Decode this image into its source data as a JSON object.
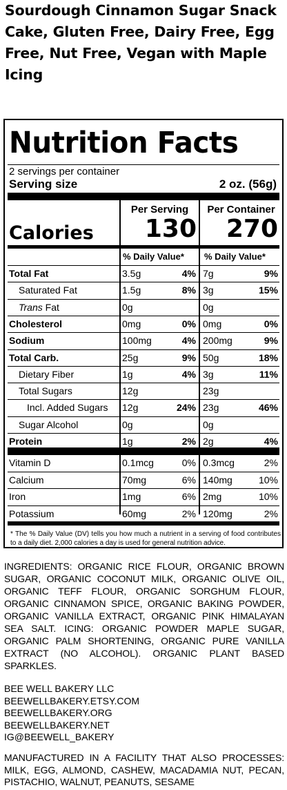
{
  "product_title": "Sourdough Cinnamon Sugar Snack Cake, Gluten Free, Dairy Free, Egg Free, Nut Free, Vegan with Maple Icing",
  "label": {
    "heading": "Nutrition Facts",
    "servings_per_container": "2 servings per container",
    "serving_size_label": "Serving size",
    "serving_size_value": "2 oz. (56g)",
    "col_per_serving": "Per Serving",
    "col_per_container": "Per Container",
    "calories_label": "Calories",
    "calories_serving": "130",
    "calories_container": "270",
    "dv_header": "% Daily Value*",
    "rows": [
      {
        "name": "Total Fat",
        "s_amt": "3.5g",
        "s_pct": "4%",
        "c_amt": "7g",
        "c_pct": "9%"
      },
      {
        "name": "Saturated Fat",
        "s_amt": "1.5g",
        "s_pct": "8%",
        "c_amt": "3g",
        "c_pct": "15%"
      },
      {
        "name_italic": "Trans",
        "name_rest": " Fat",
        "s_amt": "0g",
        "s_pct": "",
        "c_amt": "0g",
        "c_pct": ""
      },
      {
        "name": "Cholesterol",
        "s_amt": "0mg",
        "s_pct": "0%",
        "c_amt": "0mg",
        "c_pct": "0%"
      },
      {
        "name": "Sodium",
        "s_amt": "100mg",
        "s_pct": "4%",
        "c_amt": "200mg",
        "c_pct": "9%"
      },
      {
        "name": "Total Carb.",
        "s_amt": "25g",
        "s_pct": "9%",
        "c_amt": "50g",
        "c_pct": "18%"
      },
      {
        "name": "Dietary Fiber",
        "s_amt": "1g",
        "s_pct": "4%",
        "c_amt": "3g",
        "c_pct": "11%"
      },
      {
        "name": "Total Sugars",
        "s_amt": "12g",
        "s_pct": "",
        "c_amt": "23g",
        "c_pct": ""
      },
      {
        "name": "Incl. Added Sugars",
        "s_amt": "12g",
        "s_pct": "24%",
        "c_amt": "23g",
        "c_pct": "46%"
      },
      {
        "name": "Sugar Alcohol",
        "s_amt": "0g",
        "s_pct": "",
        "c_amt": "0g",
        "c_pct": ""
      },
      {
        "name": "Protein",
        "s_amt": "1g",
        "s_pct": "2%",
        "c_amt": "2g",
        "c_pct": "4%"
      }
    ],
    "vitamins": [
      {
        "name": "Vitamin D",
        "s_amt": "0.1mcg",
        "s_pct": "0%",
        "c_amt": "0.3mcg",
        "c_pct": "2%"
      },
      {
        "name": "Calcium",
        "s_amt": "70mg",
        "s_pct": "6%",
        "c_amt": "140mg",
        "c_pct": "10%"
      },
      {
        "name": "Iron",
        "s_amt": "1mg",
        "s_pct": "6%",
        "c_amt": "2mg",
        "c_pct": "10%"
      },
      {
        "name": "Potassium",
        "s_amt": "60mg",
        "s_pct": "2%",
        "c_amt": "120mg",
        "c_pct": "2%"
      }
    ],
    "footnote": "* The % Daily Value (DV) tells you how much a nutrient in a serving of food contributes to a daily diet. 2,000 calories a day is used for general nutrition advice."
  },
  "ingredients": "INGREDIENTS: ORGANIC RICE FLOUR, ORGANIC BROWN SUGAR, ORGANIC COCONUT MILK, ORGANIC OLIVE OIL, ORGANIC TEFF FLOUR, ORGANIC SORGHUM FLOUR, ORGANIC CINNAMON SPICE, ORGANIC BAKING POWDER, ORGANIC VANILLA EXTRACT, ORGANIC PINK HIMALAYAN SEA SALT. ICING: ORGANIC POWDER MAPLE SUGAR, ORGANIC PALM SHORTENING, ORGANIC PURE VANILLA EXTRACT (NO ALCOHOL). ORGANIC PLANT BASED SPARKLES.",
  "contact": {
    "company": "BEE WELL BAKERY LLC",
    "etsy": "BEEWELLBAKERY.ETSY.COM",
    "org": "BEEWELLBAKERY.ORG",
    "net": "BEEWELLBAKERY.NET",
    "instagram": "IG@BEEWELL_BAKERY"
  },
  "allergen": "MANUFACTURED IN A FACILITY THAT ALSO PROCESSES: MILK, EGG, ALMOND, CASHEW, MACADAMIA NUT, PECAN, PISTACHIO, WALNUT, PEANUTS, SESAME"
}
